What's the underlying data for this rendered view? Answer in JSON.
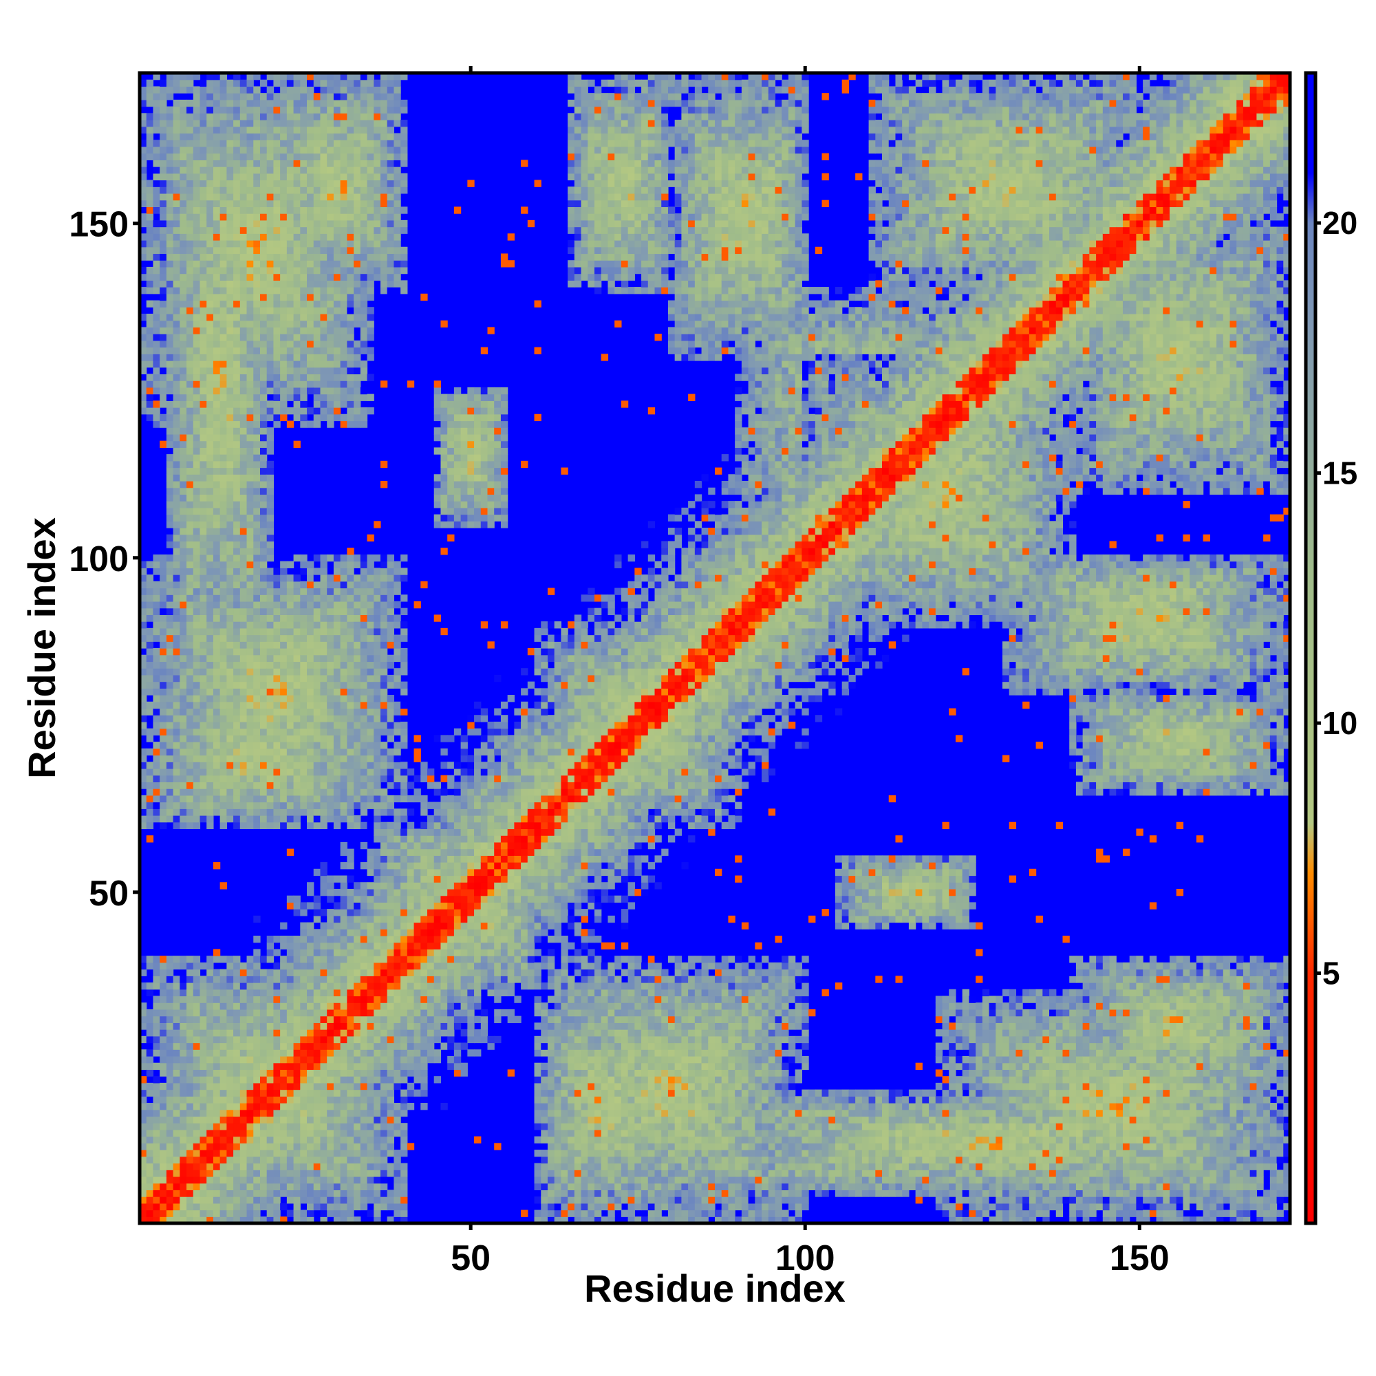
{
  "chart_data": {
    "type": "heatmap",
    "description_kind": "residue-residue distance map",
    "xlabel": "Residue index",
    "ylabel": "Residue index",
    "n_residues": 172,
    "xlim": [
      0.5,
      172.5
    ],
    "ylim": [
      0.5,
      172.5
    ],
    "x_ticks": [
      50,
      100,
      150
    ],
    "y_ticks": [
      50,
      100,
      150
    ],
    "colorbar": {
      "range": [
        0,
        23
      ],
      "ticks": [
        5,
        10,
        15,
        20
      ],
      "stops": [
        {
          "value": 0,
          "color": "#ff0000"
        },
        {
          "value": 5,
          "color": "#ff2a00"
        },
        {
          "value": 7,
          "color": "#ff8c00"
        },
        {
          "value": 8,
          "color": "#b4c882"
        },
        {
          "value": 13,
          "color": "#a0bc8a"
        },
        {
          "value": 18,
          "color": "#7f98b4"
        },
        {
          "value": 20,
          "color": "#6c86c0"
        },
        {
          "value": 21,
          "color": "#0000ff"
        }
      ]
    },
    "cutoff_color": "#0000ff",
    "structure": {
      "diagonal_band_width": 3,
      "contact_regions": [
        {
          "x": [
            1,
            35
          ],
          "y": [
            120,
            172
          ]
        },
        {
          "x": [
            1,
            40
          ],
          "y": [
            60,
            100
          ]
        },
        {
          "x": [
            1,
            40
          ],
          "y": [
            1,
            40
          ]
        },
        {
          "x": [
            45,
            60
          ],
          "y": [
            35,
            60
          ]
        },
        {
          "x": [
            60,
            90
          ],
          "y": [
            60,
            90
          ]
        },
        {
          "x": [
            65,
            80
          ],
          "y": [
            140,
            172
          ]
        },
        {
          "x": [
            85,
            100
          ],
          "y": [
            130,
            172
          ]
        },
        {
          "x": [
            110,
            150
          ],
          "y": [
            140,
            172
          ]
        },
        {
          "x": [
            100,
            140
          ],
          "y": [
            90,
            130
          ]
        },
        {
          "x": [
            130,
            172
          ],
          "y": [
            80,
            100
          ]
        },
        {
          "x": [
            140,
            172
          ],
          "y": [
            20,
            40
          ]
        },
        {
          "x": [
            80,
            172
          ],
          "y": [
            5,
            20
          ]
        },
        {
          "x": [
            60,
            80
          ],
          "y": [
            1,
            35
          ]
        },
        {
          "x": [
            105,
            125
          ],
          "y": [
            45,
            55
          ]
        },
        {
          "x": [
            45,
            55
          ],
          "y": [
            110,
            125
          ]
        }
      ]
    }
  }
}
